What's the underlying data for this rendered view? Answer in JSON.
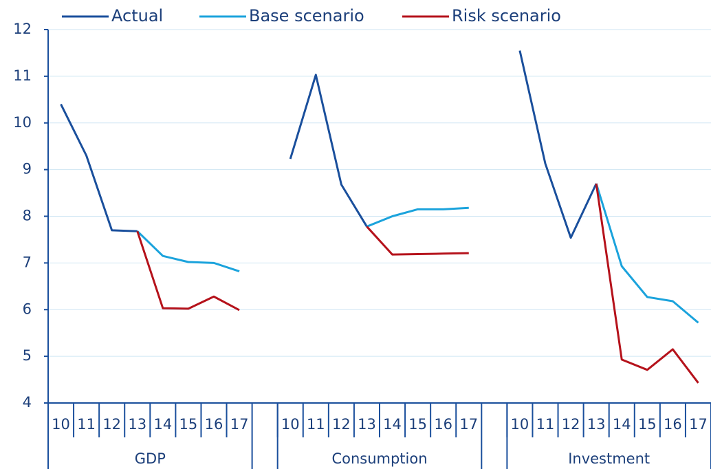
{
  "chart_data": {
    "type": "line",
    "categories": [
      "10",
      "11",
      "12",
      "13",
      "14",
      "15",
      "16",
      "17",
      null,
      "10",
      "11",
      "12",
      "13",
      "14",
      "15",
      "16",
      "17",
      null,
      "10",
      "11",
      "12",
      "13",
      "14",
      "15",
      "16",
      "17"
    ],
    "group_labels": [
      "GDP",
      "Consumption",
      "Investment"
    ],
    "series": [
      {
        "name": "Actual",
        "color": "#1a4f9c",
        "values": [
          10.4,
          9.3,
          7.7,
          7.68,
          null,
          null,
          null,
          null,
          null,
          9.23,
          11.03,
          8.68,
          7.78,
          null,
          null,
          null,
          null,
          null,
          11.55,
          9.13,
          7.54,
          8.7,
          null,
          null,
          null,
          null
        ]
      },
      {
        "name": "Base scenario",
        "color": "#1ba3dc",
        "values": [
          null,
          null,
          null,
          7.68,
          7.15,
          7.02,
          7.0,
          6.82,
          null,
          null,
          null,
          null,
          7.78,
          8.0,
          8.15,
          8.15,
          8.18,
          null,
          null,
          null,
          null,
          8.7,
          6.93,
          6.27,
          6.18,
          5.72
        ]
      },
      {
        "name": "Risk scenario",
        "color": "#b5121b",
        "values": [
          null,
          null,
          null,
          7.68,
          6.03,
          6.02,
          6.28,
          5.99,
          null,
          null,
          null,
          null,
          7.78,
          7.18,
          7.19,
          7.2,
          7.21,
          null,
          null,
          null,
          null,
          8.7,
          4.93,
          4.71,
          5.15,
          4.43
        ]
      }
    ],
    "ylim": [
      4,
      12
    ],
    "yticks": [
      4,
      5,
      6,
      7,
      8,
      9,
      10,
      11,
      12
    ],
    "grid": true,
    "legend": "top"
  }
}
